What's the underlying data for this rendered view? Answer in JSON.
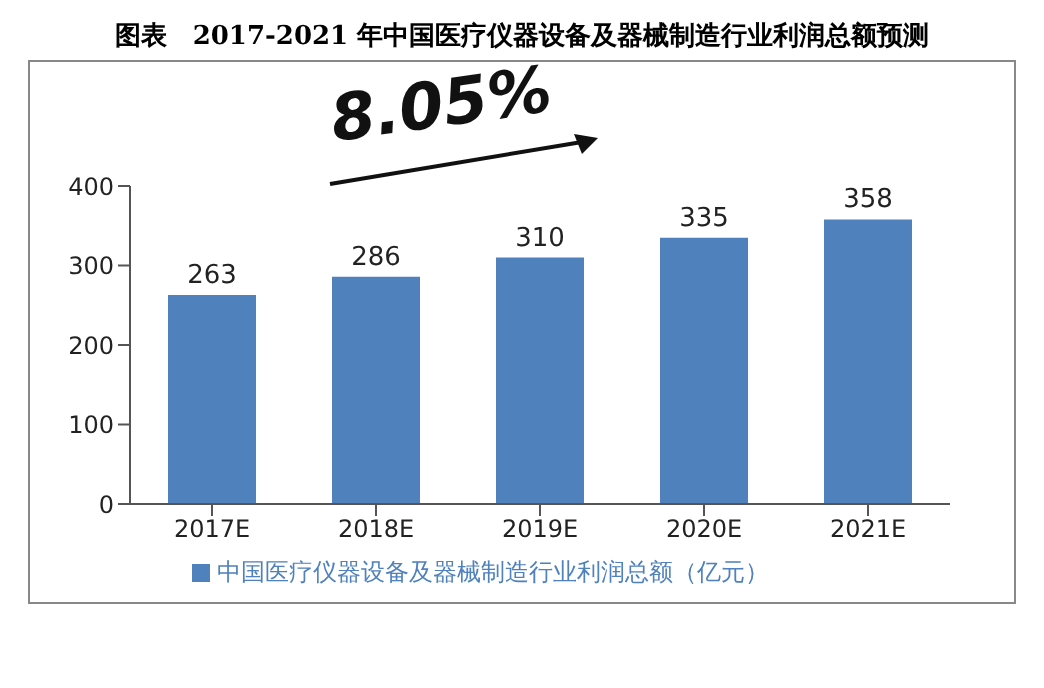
{
  "chart_data": {
    "type": "bar",
    "title": "图表　2017-2021 年中国医疗仪器设备及器械制造行业利润总额预测",
    "categories": [
      "2017E",
      "2018E",
      "2019E",
      "2020E",
      "2021E"
    ],
    "series": [
      {
        "name": "中国医疗仪器设备及器械制造行业利润总额（亿元）",
        "color": "#4f81bd",
        "values": [
          263,
          286,
          310,
          335,
          358
        ]
      }
    ],
    "ylim": [
      0,
      400
    ],
    "yticks": [
      0,
      100,
      200,
      300,
      400
    ],
    "data_labels": true,
    "legend": "bottom",
    "annotations": [
      "8.05%"
    ]
  }
}
